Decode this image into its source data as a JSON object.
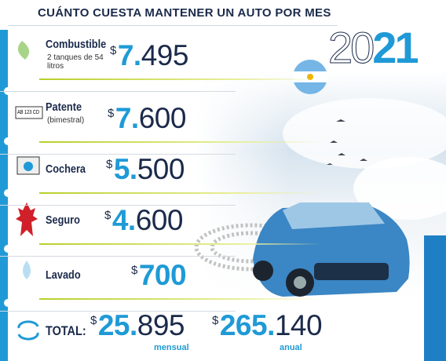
{
  "header": {
    "title": "CUÁNTO CUESTA MANTENER UN AUTO POR MES",
    "year": [
      "20",
      "21"
    ]
  },
  "items": [
    {
      "label": "Combustible",
      "note": "2 tanques de 54 litros",
      "price": {
        "currency": "$",
        "lead": "7.",
        "rest": "495"
      }
    },
    {
      "label": "Patente",
      "note": "(bimestral)",
      "plate": "AB 123 CD",
      "price": {
        "currency": "$",
        "lead": "7.",
        "rest": "600"
      }
    },
    {
      "label": "Cochera",
      "price": {
        "currency": "$",
        "lead": "5.",
        "rest": "500"
      }
    },
    {
      "label": "Seguro",
      "price": {
        "currency": "$",
        "lead": "4.",
        "rest": "600"
      }
    },
    {
      "label": "Lavado",
      "price": {
        "currency": "$",
        "lead": "700"
      }
    }
  ],
  "total": {
    "label": "TOTAL:",
    "monthly": {
      "currency": "$",
      "lead": "25.",
      "rest": "895",
      "caption": "mensual"
    },
    "yearly": {
      "currency": "$",
      "lead": "265.",
      "rest": "140",
      "caption": "anual"
    }
  }
}
